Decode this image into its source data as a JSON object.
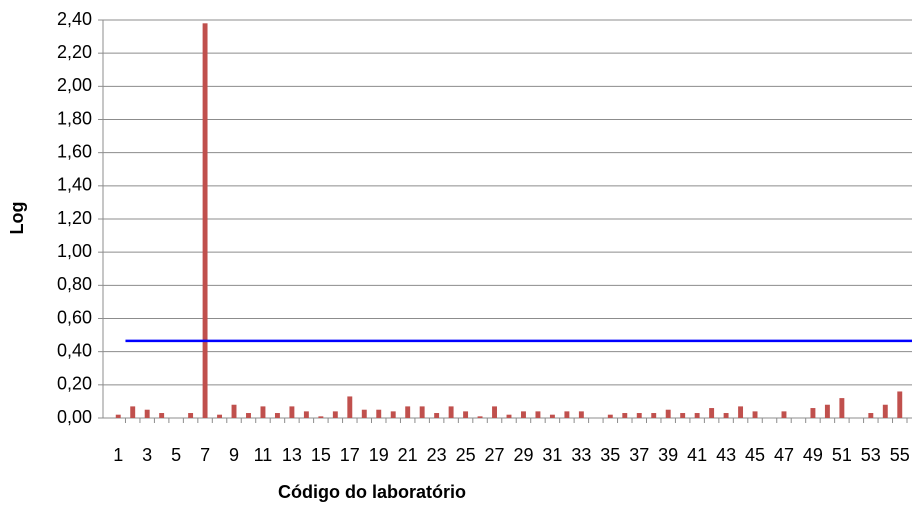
{
  "chart_data": {
    "type": "bar",
    "xlabel": "Código do laboratório",
    "ylabel": "Log",
    "categories": [
      "1",
      null,
      "3",
      null,
      "5",
      null,
      "7",
      null,
      "9",
      null,
      "11",
      null,
      "13",
      null,
      "15",
      null,
      "17",
      null,
      "19",
      null,
      "21",
      null,
      "23",
      null,
      "25",
      null,
      "27",
      null,
      "29",
      null,
      "31",
      null,
      "33",
      null,
      "35",
      null,
      "37",
      null,
      "39",
      null,
      "41",
      null,
      "43",
      null,
      "45",
      null,
      "47",
      null,
      "49",
      null,
      "51",
      null,
      "53",
      null,
      "55"
    ],
    "values": [
      0.02,
      0.07,
      0.05,
      0.03,
      0,
      0.03,
      2.38,
      0.02,
      0.08,
      0.03,
      0.07,
      0.03,
      0.07,
      0.04,
      0.01,
      0.04,
      0.13,
      0.05,
      0.05,
      0.04,
      0.07,
      0.07,
      0.03,
      0.07,
      0.04,
      0.01,
      0.07,
      0.02,
      0.04,
      0.04,
      0.02,
      0.04,
      0.04,
      0,
      0.02,
      0.03,
      0.03,
      0.03,
      0.05,
      0.03,
      0.03,
      0.06,
      0.03,
      0.07,
      0.04,
      0,
      0.04,
      0,
      0.06,
      0.08,
      0.12,
      0,
      0.03,
      0.08,
      0.16
    ],
    "color": "#c0504d",
    "reference_line": {
      "value": 0.465,
      "color": "#0000ff"
    },
    "ylim": [
      0,
      2.4
    ],
    "yticks": [
      {
        "value": 0,
        "label": "0,00"
      },
      {
        "value": 0.2,
        "label": "0,20"
      },
      {
        "value": 0.4,
        "label": "0,40"
      },
      {
        "value": 0.6,
        "label": "0,60"
      },
      {
        "value": 0.8,
        "label": "0,80"
      },
      {
        "value": 1.0,
        "label": "1,00"
      },
      {
        "value": 1.2,
        "label": "1,20"
      },
      {
        "value": 1.4,
        "label": "1,40"
      },
      {
        "value": 1.6,
        "label": "1,60"
      },
      {
        "value": 1.8,
        "label": "1,80"
      },
      {
        "value": 2.0,
        "label": "2,00"
      },
      {
        "value": 2.2,
        "label": "2,20"
      },
      {
        "value": 2.4,
        "label": "2,40"
      }
    ],
    "grid": true
  }
}
